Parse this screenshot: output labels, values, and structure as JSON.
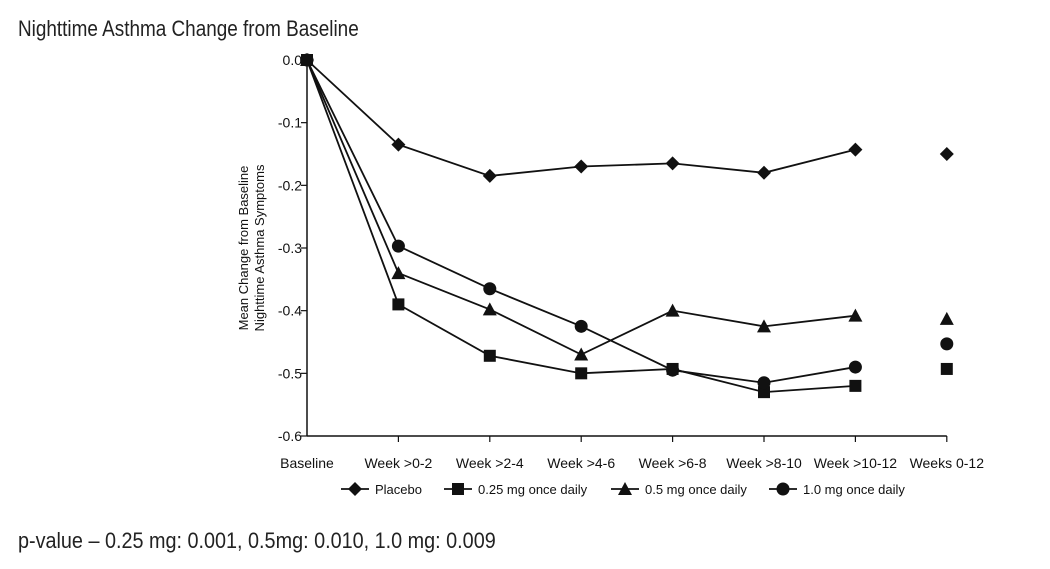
{
  "page": {
    "title": "Nighttime Asthma Change from Baseline",
    "footnote": "p-value – 0.25 mg: 0.001, 0.5mg: 0.010, 1.0 mg: 0.009"
  },
  "chart_data": {
    "type": "line",
    "title": "Nighttime Asthma Change from Baseline",
    "ylabel_lines": [
      "Mean Change from Baseline",
      "Nighttime Asthma Symptoms"
    ],
    "xlabel": "",
    "categories": [
      "Baseline",
      "Week >0-2",
      "Week >2-4",
      "Week >4-6",
      "Week >6-8",
      "Week >8-10",
      "Week >10-12",
      "Weeks 0-12"
    ],
    "ylim": [
      -0.6,
      0.0
    ],
    "yticks": [
      "0.0",
      "-0.1",
      "-0.2",
      "-0.3",
      "-0.4",
      "-0.5",
      "-0.6"
    ],
    "yticks_values": [
      0.0,
      -0.1,
      -0.2,
      -0.3,
      -0.4,
      -0.5,
      -0.6
    ],
    "legend_position": "bottom",
    "series": [
      {
        "name": "Placebo",
        "marker": "diamond",
        "values": [
          0.0,
          -0.135,
          -0.185,
          -0.17,
          -0.165,
          -0.18,
          -0.143,
          -0.15
        ]
      },
      {
        "name": "0.25 mg once daily",
        "marker": "square",
        "values": [
          0.0,
          -0.39,
          -0.472,
          -0.5,
          -0.493,
          -0.53,
          -0.52,
          -0.493
        ]
      },
      {
        "name": "0.5 mg once daily",
        "marker": "triangle",
        "values": [
          0.0,
          -0.34,
          -0.398,
          -0.47,
          -0.4,
          -0.425,
          -0.408,
          -0.413
        ]
      },
      {
        "name": "1.0 mg once daily",
        "marker": "circle",
        "values": [
          0.0,
          -0.297,
          -0.365,
          -0.425,
          -0.495,
          -0.515,
          -0.49,
          -0.453
        ]
      }
    ],
    "summary_category": "Weeks 0-12"
  }
}
